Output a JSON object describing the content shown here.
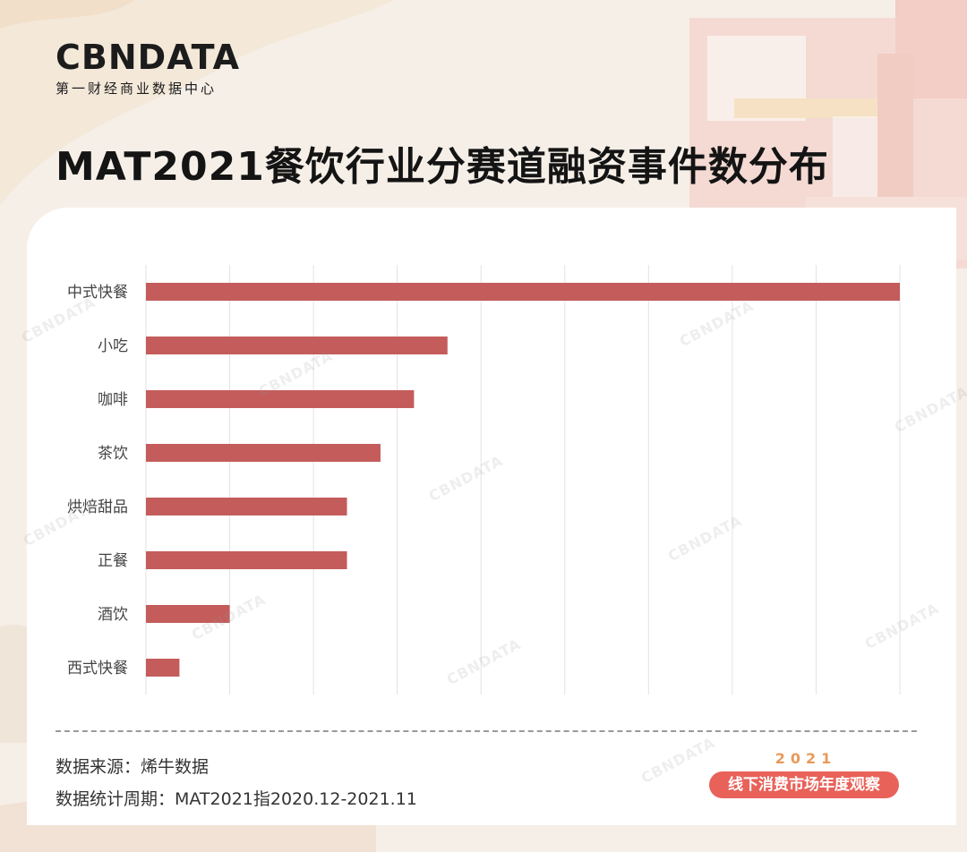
{
  "brand": {
    "logo_text": "CBNDATA",
    "logo_subtitle": "第一财经商业数据中心"
  },
  "title": "MAT2021餐饮行业分赛道融资事件数分布",
  "footer": {
    "source": "数据来源：烯牛数据",
    "period": "数据统计周期：MAT2021指2020.12-2021.11",
    "badge_year": "2021",
    "badge_text": "线下消费市场年度观察"
  },
  "colors": {
    "bar": "#c45c5c",
    "grid": "#e2e2e2",
    "accent": "#e8625a"
  },
  "chart_data": {
    "type": "bar",
    "orientation": "horizontal",
    "title": "",
    "xlabel": "",
    "ylabel": "",
    "categories": [
      "中式快餐",
      "小吃",
      "咖啡",
      "茶饮",
      "烘焙甜品",
      "正餐",
      "酒饮",
      "西式快餐"
    ],
    "values": [
      45,
      18,
      16,
      14,
      12,
      12,
      5,
      2
    ],
    "xlim": [
      0,
      45
    ],
    "grid": true,
    "tick_labels_shown": false
  }
}
